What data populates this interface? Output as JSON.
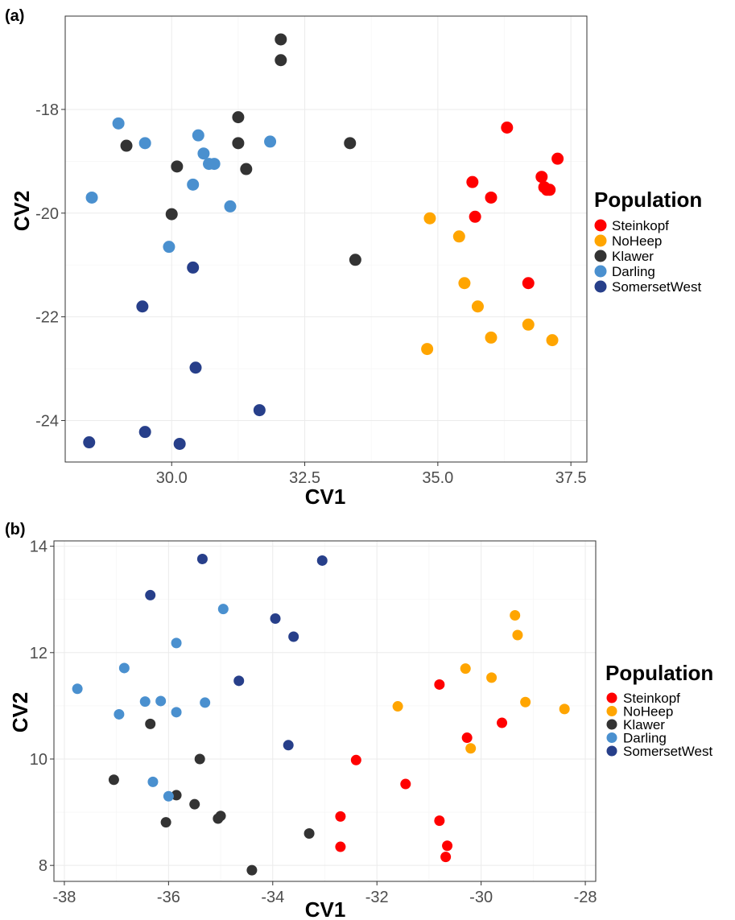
{
  "chart_data": [
    {
      "type": "scatter",
      "panel_label": "(a)",
      "xlabel": "CV1",
      "ylabel": "CV2",
      "xlim": [
        28.0,
        37.8
      ],
      "ylim": [
        -24.8,
        -16.2
      ],
      "xticks": [
        30.0,
        32.5,
        35.0,
        37.5
      ],
      "xtick_labels": [
        "30.0",
        "32.5",
        "35.0",
        "37.5"
      ],
      "yticks": [
        -18,
        -20,
        -22,
        -24
      ],
      "ytick_labels": [
        "-18",
        "-20",
        "-22",
        "-24"
      ],
      "grid": true,
      "legend": {
        "title": "Population",
        "position": "right"
      },
      "series": [
        {
          "name": "Steinkopf",
          "color": "#FF0000",
          "points": [
            [
              36.3,
              -18.35
            ],
            [
              37.25,
              -18.95
            ],
            [
              36.95,
              -19.3
            ],
            [
              35.65,
              -19.4
            ],
            [
              36.0,
              -19.7
            ],
            [
              37.0,
              -19.5
            ],
            [
              37.05,
              -19.55
            ],
            [
              37.1,
              -19.55
            ],
            [
              35.7,
              -20.07
            ],
            [
              36.7,
              -21.35
            ]
          ]
        },
        {
          "name": "NoHeep",
          "color": "#FFA500",
          "points": [
            [
              34.85,
              -20.1
            ],
            [
              35.4,
              -20.45
            ],
            [
              35.5,
              -21.35
            ],
            [
              35.75,
              -21.8
            ],
            [
              36.0,
              -22.4
            ],
            [
              36.7,
              -22.15
            ],
            [
              37.15,
              -22.45
            ],
            [
              34.8,
              -22.62
            ]
          ]
        },
        {
          "name": "Klawer",
          "color": "#333333",
          "points": [
            [
              32.05,
              -16.65
            ],
            [
              32.05,
              -17.05
            ],
            [
              31.25,
              -18.15
            ],
            [
              29.15,
              -18.7
            ],
            [
              31.25,
              -18.65
            ],
            [
              33.35,
              -18.65
            ],
            [
              30.1,
              -19.1
            ],
            [
              31.4,
              -19.15
            ],
            [
              30.0,
              -20.02
            ],
            [
              33.45,
              -20.9
            ]
          ]
        },
        {
          "name": "Darling",
          "color": "#4A90CF",
          "points": [
            [
              29.0,
              -18.27
            ],
            [
              29.5,
              -18.65
            ],
            [
              30.5,
              -18.5
            ],
            [
              31.85,
              -18.62
            ],
            [
              30.6,
              -18.85
            ],
            [
              30.7,
              -19.05
            ],
            [
              30.8,
              -19.05
            ],
            [
              30.4,
              -19.45
            ],
            [
              28.5,
              -19.7
            ],
            [
              31.1,
              -19.87
            ],
            [
              29.95,
              -20.65
            ]
          ]
        },
        {
          "name": "SomersetWest",
          "color": "#273F8A",
          "points": [
            [
              30.4,
              -21.05
            ],
            [
              29.45,
              -21.8
            ],
            [
              30.45,
              -22.98
            ],
            [
              31.65,
              -23.8
            ],
            [
              29.5,
              -24.22
            ],
            [
              28.45,
              -24.42
            ],
            [
              30.15,
              -24.45
            ]
          ]
        }
      ]
    },
    {
      "type": "scatter",
      "panel_label": "(b)",
      "xlabel": "CV1",
      "ylabel": "CV2",
      "xlim": [
        -38.2,
        -27.8
      ],
      "ylim": [
        7.7,
        14.1
      ],
      "xticks": [
        -38,
        -36,
        -34,
        -32,
        -30,
        -28
      ],
      "xtick_labels": [
        "-38",
        "-36",
        "-34",
        "-32",
        "-30",
        "-28"
      ],
      "yticks": [
        14,
        12,
        10,
        8
      ],
      "ytick_labels": [
        "14",
        "12",
        "10",
        "8"
      ],
      "grid": true,
      "legend": {
        "title": "Population",
        "position": "right"
      },
      "series": [
        {
          "name": "Steinkopf",
          "color": "#FF0000",
          "points": [
            [
              -30.8,
              11.4
            ],
            [
              -29.6,
              10.68
            ],
            [
              -30.27,
              10.4
            ],
            [
              -32.4,
              9.98
            ],
            [
              -31.45,
              9.53
            ],
            [
              -32.7,
              8.92
            ],
            [
              -30.8,
              8.84
            ],
            [
              -30.65,
              8.37
            ],
            [
              -32.7,
              8.35
            ],
            [
              -30.68,
              8.16
            ]
          ]
        },
        {
          "name": "NoHeep",
          "color": "#FFA500",
          "points": [
            [
              -29.35,
              12.7
            ],
            [
              -29.3,
              12.33
            ],
            [
              -30.3,
              11.7
            ],
            [
              -29.8,
              11.53
            ],
            [
              -31.6,
              10.99
            ],
            [
              -29.15,
              11.07
            ],
            [
              -28.4,
              10.94
            ],
            [
              -30.2,
              10.2
            ]
          ]
        },
        {
          "name": "Klawer",
          "color": "#333333",
          "points": [
            [
              -36.35,
              10.66
            ],
            [
              -35.4,
              10.0
            ],
            [
              -37.05,
              9.61
            ],
            [
              -35.85,
              9.32
            ],
            [
              -35.5,
              9.15
            ],
            [
              -35.0,
              8.93
            ],
            [
              -35.05,
              8.88
            ],
            [
              -36.05,
              8.81
            ],
            [
              -33.3,
              8.6
            ],
            [
              -34.4,
              7.91
            ]
          ]
        },
        {
          "name": "Darling",
          "color": "#4A90CF",
          "points": [
            [
              -34.95,
              12.82
            ],
            [
              -35.85,
              12.18
            ],
            [
              -36.85,
              11.71
            ],
            [
              -37.75,
              11.32
            ],
            [
              -36.45,
              11.08
            ],
            [
              -36.15,
              11.09
            ],
            [
              -35.3,
              11.06
            ],
            [
              -36.95,
              10.84
            ],
            [
              -35.85,
              10.88
            ],
            [
              -36.3,
              9.57
            ],
            [
              -36.0,
              9.3
            ]
          ]
        },
        {
          "name": "SomersetWest",
          "color": "#273F8A",
          "points": [
            [
              -35.35,
              13.76
            ],
            [
              -33.05,
              13.73
            ],
            [
              -36.35,
              13.08
            ],
            [
              -33.95,
              12.64
            ],
            [
              -33.6,
              12.3
            ],
            [
              -34.65,
              11.47
            ],
            [
              -33.7,
              10.26
            ]
          ]
        }
      ]
    }
  ]
}
